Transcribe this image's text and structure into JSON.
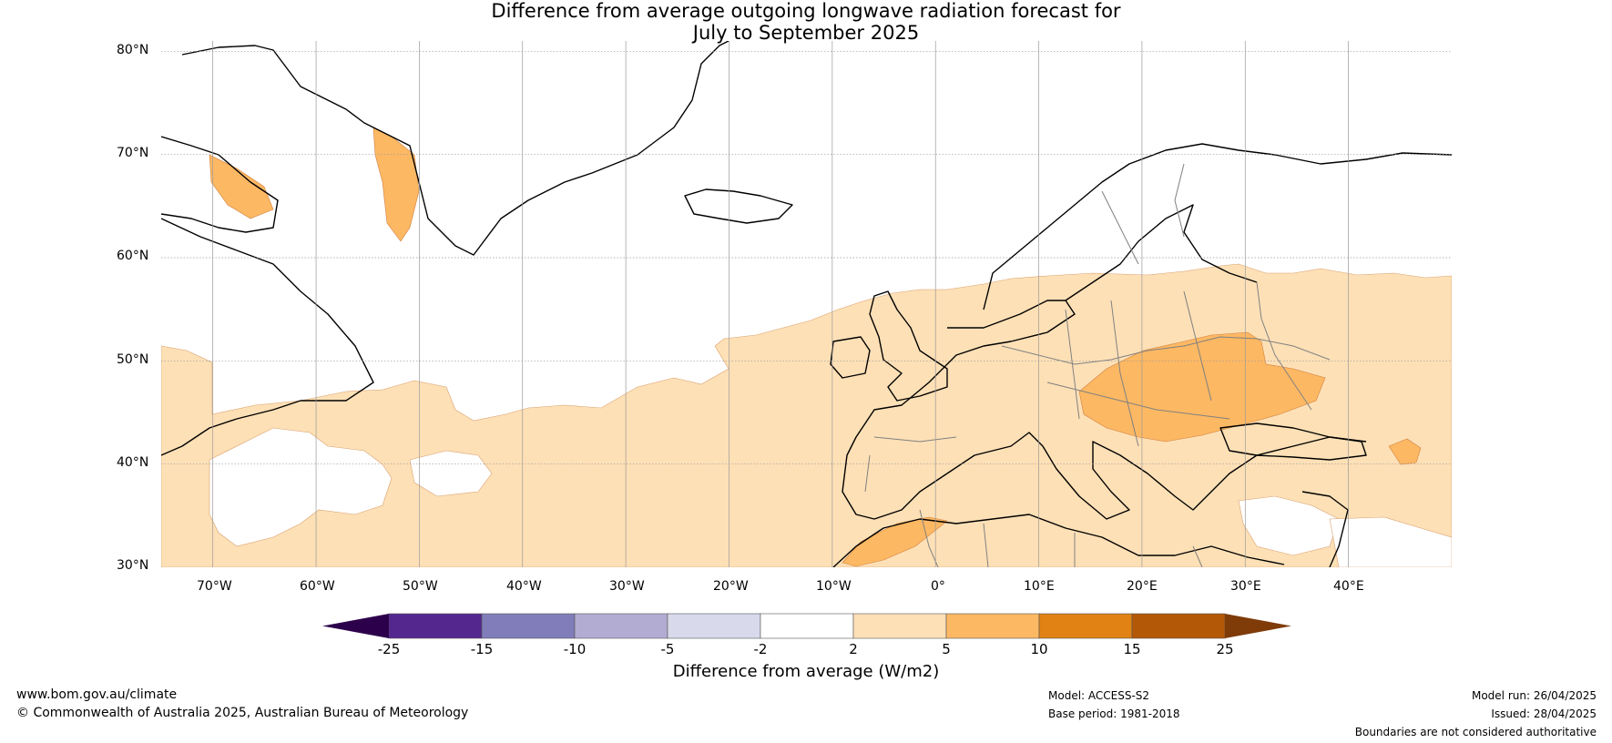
{
  "title_line1": "Difference from average outgoing longwave radiation forecast for",
  "title_line2": "July to September 2025",
  "lat_labels": [
    "80°N",
    "70°N",
    "60°N",
    "50°N",
    "40°N",
    "30°N"
  ],
  "lon_labels": [
    "70°W",
    "60°W",
    "50°W",
    "40°W",
    "30°W",
    "20°W",
    "10°W",
    "0°",
    "10°E",
    "20°E",
    "30°E",
    "40°E"
  ],
  "map_extent": {
    "lon_min": -75,
    "lon_max": 50,
    "lat_min": 30,
    "lat_max": 81
  },
  "colorbar": {
    "title": "Difference from average (W/m2)",
    "ticks": [
      "-25",
      "-15",
      "-10",
      "-5",
      "-2",
      "2",
      "5",
      "10",
      "15",
      "25"
    ],
    "colors": [
      "#54278f",
      "#807dba",
      "#b2abd2",
      "#d8daeb",
      "#ffffff",
      "#fee0b6",
      "#fdb863",
      "#e08214",
      "#b35806"
    ],
    "under_color": "#2d004b",
    "over_color": "#7f3b08"
  },
  "footer": {
    "website": "www.bom.gov.au/climate",
    "copyright": "© Commonwealth of Australia 2025, Australian Bureau of Meteorology",
    "model": "Model: ACCESS-S2",
    "base_period": "Base period: 1981-2018",
    "model_run": "Model run: 26/04/2025",
    "issued": "Issued: 28/04/2025",
    "disclaimer": "Boundaries are not considered authoritative"
  },
  "colors": {
    "coast": "#000000",
    "border": "#808080",
    "grid": "#999999"
  }
}
